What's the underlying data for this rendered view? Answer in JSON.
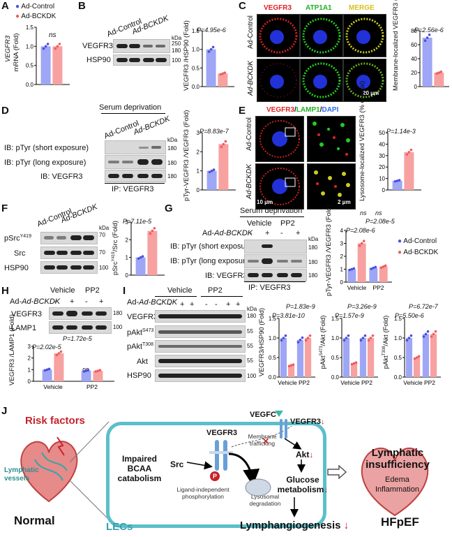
{
  "panels": {
    "A": {
      "label": "A",
      "legend": [
        "Ad-Control",
        "Ad-BCKDK"
      ],
      "ylabel_gene": "VEGFR3",
      "ylabel_rest": "mRNA (Fold)",
      "stat": "ns",
      "yticks": [
        "0.0",
        "0.5",
        "1.0",
        "1.5"
      ]
    },
    "B": {
      "label": "B",
      "groups": [
        "Ad-Control",
        "Ad-BCKDK"
      ],
      "blots": [
        "VEGFR3",
        "HSP90"
      ],
      "kda": [
        "kDa",
        "250",
        "180",
        "100"
      ],
      "ylabel": "VEGFR3 /HSP90 (Fold)",
      "pvalue": "P=4.95e-6",
      "yticks": [
        "0.0",
        "0.5",
        "1.0",
        "1.5"
      ]
    },
    "C": {
      "label": "C",
      "channels": [
        "VEGFR3",
        "ATP1A1",
        "MERGE"
      ],
      "rows": [
        "Ad-Control",
        "Ad-BCKDK"
      ],
      "scalebar": "20 μm",
      "ylabel": "Membrane-localized VEGFR3 (% of total)",
      "pvalue": "P=2.56e-6",
      "yticks": [
        "0",
        "20",
        "40",
        "60",
        "80"
      ]
    },
    "D": {
      "label": "D",
      "title": "Serum deprivation",
      "groups": [
        "Ad-Control",
        "Ad-BCKDK"
      ],
      "blots": [
        "IB: pTyr (short exposure)",
        "IB: pTyr (long exposure)",
        "IB: VEGFR3"
      ],
      "kda": [
        "kDa",
        "180",
        "180",
        "180"
      ],
      "ip": "IP: VEGFR3",
      "ylabel": "pTyr-VEGFR3 /VEGFR3 (Fold)",
      "pvalue": "P=8.83e-7",
      "yticks": [
        "0",
        "1",
        "2",
        "3"
      ]
    },
    "E": {
      "label": "E",
      "channels": [
        "VEGFR3",
        "LAMP1",
        "DAPI"
      ],
      "rows": [
        "Ad-Control",
        "Ad-BCKDK"
      ],
      "scalebars": [
        "10 μm",
        "2 μm"
      ],
      "ylabel": "Lysosome-localized VEGFR3 (% of total)",
      "pvalue": "P=1.14e-3",
      "yticks": [
        "0",
        "10",
        "20",
        "30",
        "40",
        "50"
      ]
    },
    "F": {
      "label": "F",
      "groups": [
        "Ad-Control",
        "Ad-BCKDK"
      ],
      "blots": [
        "pSrcY419",
        "Src",
        "HSP90"
      ],
      "kda": [
        "kDa",
        "70",
        "70",
        "100"
      ],
      "ylabel": "pSrcY419/Src (Fold)",
      "pvalue": "P=7.11e-5",
      "yticks": [
        "0",
        "1",
        "2",
        "3"
      ]
    },
    "G": {
      "label": "G",
      "title": "Serum deprivation",
      "treat": [
        "Vehicle",
        "PP2"
      ],
      "bckdk_row": "Ad-BCKDK",
      "signs": [
        "-",
        "+",
        "-",
        "+"
      ],
      "blots": [
        "IB: pTyr (short exposure)",
        "IB: pTyr (long exposure)",
        "IB: VEGFR3"
      ],
      "kda": [
        "kDa",
        "180",
        "180",
        "180"
      ],
      "ip": "IP: VEGFR3",
      "ylabel": "pTyr-VEGFR3 /VEGFR3 (Fold)",
      "pvalues": [
        "ns",
        "ns",
        "P=2.08e-5",
        "P=2.08e-6"
      ],
      "xcats": [
        "Vehicle",
        "PP2"
      ],
      "yticks": [
        "0",
        "1",
        "2",
        "3",
        "4"
      ],
      "legend": [
        "Ad-Control",
        "Ad-BCKDK"
      ]
    },
    "H": {
      "label": "H",
      "treat": [
        "Vehicle",
        "PP2"
      ],
      "bckdk_row": "Ad-BCKDK",
      "signs": [
        "-",
        "+",
        "-",
        "+"
      ],
      "blots": [
        "VEGFR3",
        "LAMP1"
      ],
      "kda": [
        "180",
        "100"
      ],
      "ylabel": "VEGFR3 /LAMP1 (Fold)",
      "pvalues": [
        "P=1.72e-5",
        "P=2.02e-5",
        "ns"
      ],
      "xcats": [
        "Vehicle",
        "PP2"
      ],
      "yticks": [
        "0",
        "1",
        "2",
        "3"
      ]
    },
    "I": {
      "label": "I",
      "treat": [
        "Vehicle",
        "PP2"
      ],
      "bckdk_row": "Ad-BCKDK",
      "signs": [
        "-",
        "-",
        "+",
        "+",
        "-",
        "-",
        "+",
        "+"
      ],
      "blots": [
        "VEGFR3",
        "pAktS473",
        "pAktT308",
        "Akt",
        "HSP90"
      ],
      "kda": [
        "kDa",
        "180",
        "55",
        "55",
        "55",
        "100"
      ],
      "charts": [
        {
          "ylabel": "VEGFR3/HSP90 (Fold)",
          "p1": "P=1.83e-9",
          "p2": "P=3.81e-10",
          "yticks": [
            "0.0",
            "0.5",
            "1.0",
            "1.5"
          ]
        },
        {
          "ylabel": "pAktS473/Akt (Fold)",
          "p1": "P=3.26e-9",
          "p2": "P=1.57e-9",
          "yticks": [
            "0.0",
            "0.5",
            "1.0",
            "1.5"
          ]
        },
        {
          "ylabel": "pAktT308/Akt (Fold)",
          "p1": "P=6.72e-7",
          "p2": "P=5.50e-6",
          "yticks": [
            "0.0",
            "0.5",
            "1.0",
            "1.5"
          ]
        }
      ],
      "xcats": [
        "Vehicle",
        "PP2"
      ]
    },
    "J": {
      "label": "J",
      "risk": "Risk factors",
      "vessels": "Lymphatic vessels",
      "normal": "Normal",
      "lecs": "LECs",
      "impaired": "Impaired BCAA catabolism",
      "src": "Src",
      "vegfr3": "VEGFR3",
      "ligand": "Ligand-independent phosphorylation",
      "lyso": "Lysosomal degradation",
      "membrane": "Membrane trafficking",
      "vegfc": "VEGFC",
      "vegfr3_top": "VEGFR3",
      "akt": "Akt",
      "glucose": "Glucose metabolism",
      "lymph": "Lymphangiogenesis",
      "down": "↓",
      "insuff": "Lymphatic insufficiency",
      "edema": "Edema",
      "inflam": "Inflammation",
      "hfpef": "HFpEF",
      "p": "P"
    }
  },
  "colors": {
    "control": "#4a4ee0",
    "bckdk": "#f25b5b",
    "bar_control": "#9ea6f5",
    "bar_bckdk": "#f7a1a1",
    "teal": "#5bbfc9"
  }
}
